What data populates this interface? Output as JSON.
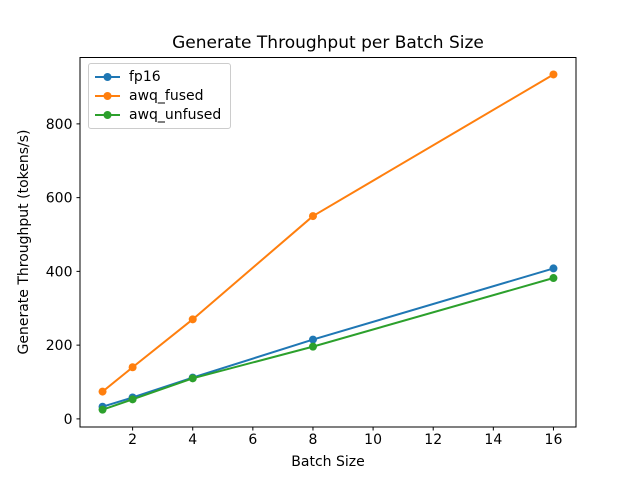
{
  "chart_data": {
    "type": "line",
    "title": "Generate Throughput per Batch Size",
    "xlabel": "Batch Size",
    "ylabel": "Generate Throughput (tokens/s)",
    "x": [
      1,
      2,
      4,
      8,
      16
    ],
    "series": [
      {
        "name": "fp16",
        "color": "#1f77b4",
        "values": [
          33,
          58,
          112,
          215,
          408
        ]
      },
      {
        "name": "awq_fused",
        "color": "#ff7f0e",
        "values": [
          74,
          140,
          270,
          550,
          934
        ]
      },
      {
        "name": "awq_unfused",
        "color": "#2ca02c",
        "values": [
          25,
          53,
          110,
          196,
          382
        ]
      }
    ],
    "xticks": [
      2,
      4,
      6,
      8,
      10,
      12,
      14,
      16
    ],
    "yticks": [
      0,
      200,
      400,
      600,
      800
    ],
    "xlim": [
      0.25,
      16.75
    ],
    "ylim": [
      -22,
      980
    ],
    "grid": false,
    "legend_position": "upper-left",
    "marker": "circle",
    "colors": {
      "axis": "#000000",
      "background": "#ffffff",
      "legend_border": "#cccccc"
    }
  }
}
